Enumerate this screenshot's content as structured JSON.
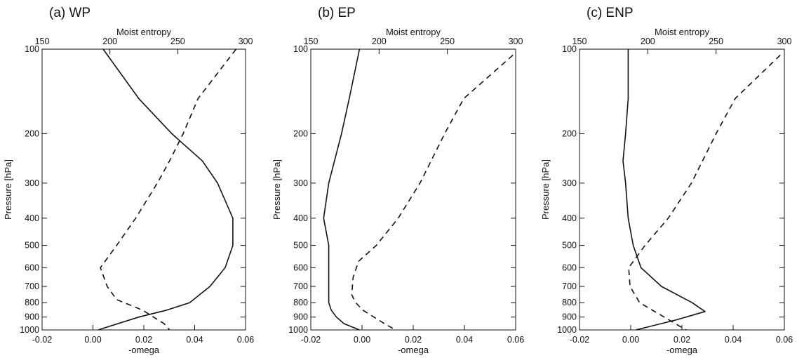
{
  "chart_data": [
    {
      "type": "line",
      "title": "(a) WP",
      "xlabel": "-omega",
      "x2label": "Moist entropy",
      "ylabel": "Pressure [hPa]",
      "xlim": [
        -0.02,
        0.06
      ],
      "x2lim": [
        150,
        300
      ],
      "ylim": [
        100,
        1000
      ],
      "yscale": "log",
      "yinverted": true,
      "xticks": [
        "-0.02",
        "0.00",
        "0.02",
        "0.04",
        "0.06"
      ],
      "x2ticks": [
        "150",
        "200",
        "250",
        "300"
      ],
      "yticks": [
        "100",
        "200",
        "300",
        "400",
        "500",
        "600",
        "700",
        "800",
        "900",
        "1000"
      ],
      "series": [
        {
          "axis": "bottom",
          "style": "solid",
          "p": [
            100,
            150,
            200,
            250,
            300,
            400,
            500,
            600,
            700,
            800,
            850,
            900,
            1000
          ],
          "x": [
            0.004,
            0.018,
            0.031,
            0.043,
            0.049,
            0.055,
            0.055,
            0.052,
            0.046,
            0.038,
            0.029,
            0.018,
            0.002
          ]
        },
        {
          "axis": "top",
          "style": "dashed",
          "p": [
            100,
            150,
            200,
            250,
            300,
            400,
            500,
            600,
            700,
            780,
            850,
            950,
            1000
          ],
          "x": [
            293,
            265,
            254,
            244,
            235,
            219,
            205,
            193,
            198,
            205,
            224,
            240,
            244
          ]
        }
      ]
    },
    {
      "type": "line",
      "title": "(b) EP",
      "xlabel": "-omega",
      "x2label": "Moist entropy",
      "ylabel": "Pressure [hPa]",
      "xlim": [
        -0.02,
        0.06
      ],
      "x2lim": [
        150,
        300
      ],
      "ylim": [
        100,
        1000
      ],
      "yscale": "log",
      "yinverted": true,
      "xticks": [
        "-0.02",
        "0.00",
        "0.02",
        "0.04",
        "0.06"
      ],
      "x2ticks": [
        "150",
        "200",
        "250",
        "300"
      ],
      "yticks": [
        "100",
        "200",
        "300",
        "400",
        "500",
        "600",
        "700",
        "800",
        "900",
        "1000"
      ],
      "series": [
        {
          "axis": "bottom",
          "style": "solid",
          "p": [
            100,
            150,
            200,
            300,
            400,
            500,
            600,
            700,
            800,
            850,
            900,
            950,
            1000
          ],
          "x": [
            -0.001,
            -0.005,
            -0.008,
            -0.013,
            -0.015,
            -0.013,
            -0.013,
            -0.013,
            -0.013,
            -0.012,
            -0.01,
            -0.007,
            -0.001
          ]
        },
        {
          "axis": "top",
          "style": "dashed",
          "p": [
            105,
            150,
            200,
            300,
            400,
            500,
            570,
            650,
            750,
            800,
            850,
            950,
            1000
          ],
          "x": [
            298,
            262,
            248,
            230,
            214,
            198,
            185,
            181,
            180,
            183,
            188,
            204,
            212
          ]
        }
      ]
    },
    {
      "type": "line",
      "title": "(c) ENP",
      "xlabel": "-omega",
      "x2label": "Moist entropy",
      "ylabel": "Pressure [hPa]",
      "xlim": [
        -0.02,
        0.06
      ],
      "x2lim": [
        150,
        300
      ],
      "ylim": [
        100,
        1000
      ],
      "yscale": "log",
      "yinverted": true,
      "xticks": [
        "-0.02",
        "0.00",
        "0.02",
        "0.04",
        "0.06"
      ],
      "x2ticks": [
        "150",
        "200",
        "250",
        "300"
      ],
      "yticks": [
        "100",
        "200",
        "300",
        "400",
        "500",
        "600",
        "700",
        "800",
        "900",
        "1000"
      ],
      "series": [
        {
          "axis": "bottom",
          "style": "solid",
          "p": [
            100,
            150,
            200,
            250,
            300,
            400,
            500,
            600,
            700,
            800,
            860,
            920,
            1000
          ],
          "x": [
            -0.001,
            -0.001,
            -0.002,
            -0.003,
            -0.002,
            -0.001,
            0.001,
            0.004,
            0.012,
            0.024,
            0.029,
            0.018,
            0.002
          ]
        },
        {
          "axis": "top",
          "style": "dashed",
          "p": [
            105,
            150,
            200,
            300,
            400,
            500,
            600,
            700,
            800,
            900,
            1000
          ],
          "x": [
            297,
            264,
            250,
            232,
            215,
            198,
            186,
            187,
            194,
            212,
            228
          ]
        }
      ]
    }
  ]
}
